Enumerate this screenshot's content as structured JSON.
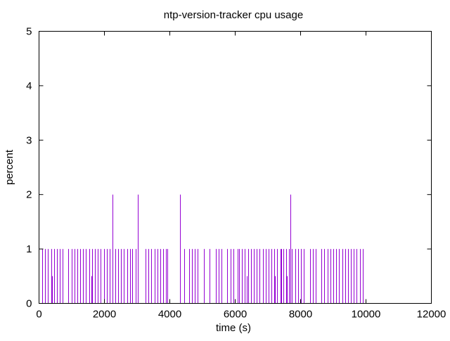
{
  "chart_data": {
    "type": "bar",
    "title": "ntp-version-tracker cpu usage",
    "xlabel": "time (s)",
    "ylabel": "percent",
    "xlim": [
      0,
      12000
    ],
    "ylim": [
      0,
      5
    ],
    "xticks": [
      0,
      2000,
      4000,
      6000,
      8000,
      10000,
      12000
    ],
    "yticks": [
      0,
      1,
      2,
      3,
      4,
      5
    ],
    "grid": false,
    "legend": "none",
    "series_color": "#9400d3",
    "series": [
      {
        "x": [
          100,
          180,
          270,
          370,
          390,
          460,
          550,
          640,
          730,
          900,
          990,
          1080,
          1170,
          1260,
          1350,
          1440,
          1530,
          1600,
          1620,
          1710,
          1800,
          1890,
          1980,
          2070,
          2160,
          2240,
          2330,
          2420,
          2510,
          2600,
          2690,
          2780,
          2860,
          2950,
          3030,
          3260,
          3350,
          3440,
          3530,
          3620,
          3710,
          3800,
          3890,
          3930,
          4310,
          4440,
          4450,
          4590,
          4680,
          4770,
          4860,
          5040,
          5220,
          5400,
          5490,
          5580,
          5760,
          5850,
          5940,
          6080,
          6120,
          6210,
          6300,
          6350,
          6390,
          6480,
          6570,
          6660,
          6750,
          6840,
          6930,
          7020,
          7110,
          7200,
          7220,
          7290,
          7380,
          7400,
          7470,
          7560,
          7580,
          7650,
          7690,
          7740,
          7830,
          7920,
          8000,
          8010,
          8100,
          8280,
          8370,
          8460,
          8640,
          8730,
          8820,
          8910,
          9000,
          9090,
          9180,
          9270,
          9360,
          9450,
          9540,
          9630,
          9720,
          9810,
          9900
        ],
        "y": [
          1,
          1,
          1,
          1,
          0.5,
          1,
          1,
          1,
          1,
          1,
          1,
          1,
          1,
          1,
          1,
          1,
          1,
          0.5,
          1,
          1,
          1,
          1,
          1,
          1,
          1,
          2,
          1,
          1,
          1,
          1,
          1,
          1,
          1,
          1,
          2,
          1,
          1,
          1,
          1,
          1,
          1,
          1,
          1,
          1,
          2,
          1,
          0.5,
          1,
          1,
          1,
          1,
          1,
          1,
          1,
          1,
          1,
          1,
          1,
          1,
          1,
          1,
          1,
          1,
          0.5,
          1,
          1,
          1,
          1,
          1,
          1,
          1,
          1,
          1,
          1,
          0.5,
          1,
          1,
          1,
          1,
          1,
          0.5,
          1,
          2,
          1,
          1,
          1,
          1,
          1,
          1,
          1,
          1,
          1,
          1,
          1,
          1,
          1,
          1,
          1,
          1,
          1,
          1,
          1,
          1,
          1,
          1,
          1,
          1
        ]
      }
    ]
  }
}
